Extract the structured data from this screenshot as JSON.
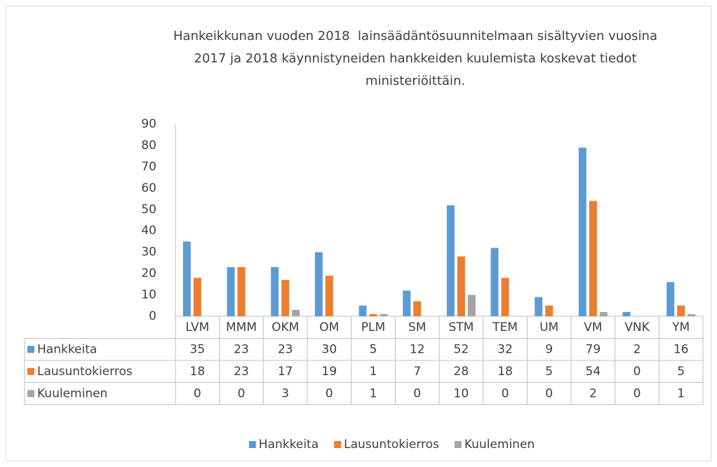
{
  "chart_data": {
    "type": "bar",
    "title": "Hankeikkunan vuoden 2018  lainsäädäntösuunnitelmaan sisältyvien vuosina 2017 ja 2018 käynnistyneiden hankkeiden kuulemista koskevat tiedot ministeriöittäin.",
    "categories": [
      "LVM",
      "MMM",
      "OKM",
      "OM",
      "PLM",
      "SM",
      "STM",
      "TEM",
      "UM",
      "VM",
      "VNK",
      "YM"
    ],
    "series": [
      {
        "name": "Hankkeita",
        "color": "#5b9bd5",
        "values": [
          35,
          23,
          23,
          30,
          5,
          12,
          52,
          32,
          9,
          79,
          2,
          16
        ]
      },
      {
        "name": "Lausuntokierros",
        "color": "#ed7d31",
        "values": [
          18,
          23,
          17,
          19,
          1,
          7,
          28,
          18,
          5,
          54,
          0,
          5
        ]
      },
      {
        "name": "Kuuleminen",
        "color": "#a5a5a5",
        "values": [
          0,
          0,
          3,
          0,
          1,
          0,
          10,
          0,
          0,
          2,
          0,
          1
        ]
      }
    ],
    "ylim": [
      0,
      90
    ],
    "yticks": [
      0,
      10,
      20,
      30,
      40,
      50,
      60,
      70,
      80,
      90
    ],
    "grid": false,
    "legend": "bottom",
    "data_table": true
  }
}
